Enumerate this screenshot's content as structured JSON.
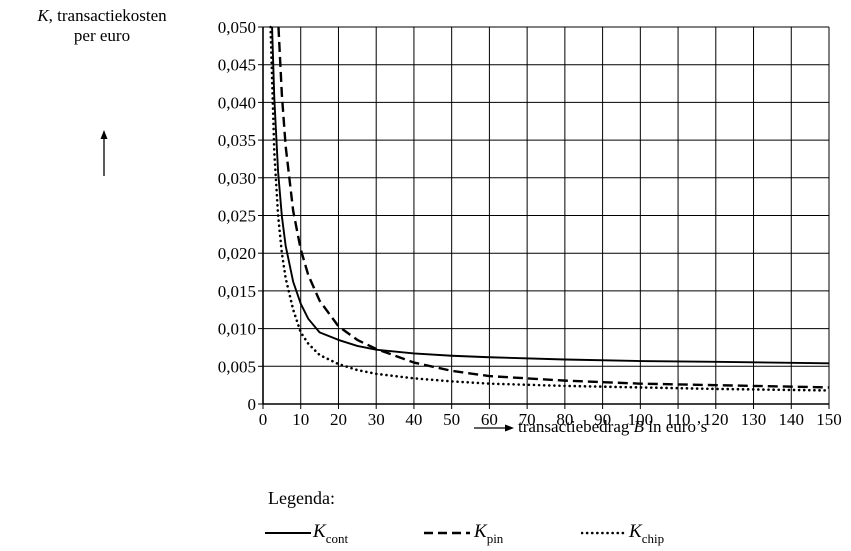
{
  "chart_data": {
    "type": "line",
    "ylabel_var": "K",
    "ylabel_line1": ", transactiekosten",
    "ylabel_line2": "per euro",
    "xlabel_prefix": "transactiebedrag ",
    "xlabel_var": "B",
    "xlabel_suffix": " in euro’s",
    "xlim": [
      0,
      150
    ],
    "ylim": [
      0,
      0.05
    ],
    "x_ticks": [
      0,
      10,
      20,
      30,
      40,
      50,
      60,
      70,
      80,
      90,
      100,
      110,
      120,
      130,
      140,
      150
    ],
    "x_tick_labels": [
      "0",
      "10",
      "20",
      "30",
      "40",
      "50",
      "60",
      "70",
      "80",
      "90",
      "100",
      "110",
      "120",
      "130",
      "140",
      "150"
    ],
    "y_ticks": [
      0,
      0.005,
      0.01,
      0.015,
      0.02,
      0.025,
      0.03,
      0.035,
      0.04,
      0.045,
      0.05
    ],
    "y_tick_labels": [
      "0",
      "0,005",
      "0,010",
      "0,015",
      "0,020",
      "0,025",
      "0,030",
      "0,035",
      "0,040",
      "0,045",
      "0,050"
    ],
    "grid": true,
    "legend_title": "Legenda:",
    "series": [
      {
        "name": "cont",
        "style": "solid",
        "x": [
          2.4,
          3,
          4,
          5,
          6,
          8,
          10,
          12,
          15,
          20,
          25,
          30,
          40,
          50,
          60,
          80,
          100,
          120,
          150
        ],
        "y": [
          0.05,
          0.0405,
          0.0308,
          0.0249,
          0.021,
          0.0162,
          0.0133,
          0.0113,
          0.0095,
          0.0085,
          0.0077,
          0.0072,
          0.0067,
          0.0064,
          0.0062,
          0.0059,
          0.0057,
          0.0056,
          0.0054
        ]
      },
      {
        "name": "pin",
        "style": "dashed",
        "x": [
          4.1,
          5,
          6,
          8,
          10,
          12,
          15,
          20,
          25,
          30,
          40,
          50,
          60,
          80,
          100,
          120,
          150
        ],
        "y": [
          0.05,
          0.041,
          0.0342,
          0.0256,
          0.0205,
          0.0171,
          0.0137,
          0.0103,
          0.0085,
          0.0073,
          0.0055,
          0.0044,
          0.0037,
          0.0031,
          0.0027,
          0.0025,
          0.0022
        ]
      },
      {
        "name": "chip",
        "style": "dotted",
        "x": [
          2,
          3,
          4,
          5,
          6,
          8,
          10,
          12,
          15,
          20,
          25,
          30,
          40,
          50,
          60,
          80,
          100,
          120,
          150
        ],
        "y": [
          0.05,
          0.0333,
          0.025,
          0.02,
          0.0167,
          0.0125,
          0.0095,
          0.008,
          0.0065,
          0.0053,
          0.0045,
          0.004,
          0.0034,
          0.003,
          0.0027,
          0.0024,
          0.0022,
          0.002,
          0.0018
        ]
      }
    ]
  }
}
